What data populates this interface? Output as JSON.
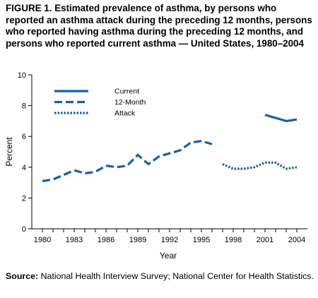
{
  "chart_data": {
    "type": "line",
    "title": "FIGURE 1. Estimated prevalence of asthma, by persons who reported an asthma attack during the preceding 12 months, persons who reported having asthma during the preceding 12 months, and persons who reported current asthma — United States, 1980–2004",
    "xlabel": "Year",
    "ylabel": "Percent",
    "xlim": [
      1979,
      2005
    ],
    "ylim": [
      0,
      10
    ],
    "x_ticks": [
      1980,
      1983,
      1986,
      1989,
      1992,
      1995,
      1998,
      2001,
      2004
    ],
    "y_ticks": [
      0,
      2,
      4,
      6,
      8,
      10
    ],
    "grid": false,
    "legend_position": "top-left",
    "series": [
      {
        "name": "Current",
        "style": "solid",
        "color": "#1560a8",
        "points": [
          [
            2001,
            7.4
          ],
          [
            2002,
            7.2
          ],
          [
            2003,
            7.0
          ],
          [
            2004,
            7.1
          ]
        ]
      },
      {
        "name": "12-Month",
        "style": "dashed",
        "color": "#1560a8",
        "points": [
          [
            1980,
            3.1
          ],
          [
            1981,
            3.2
          ],
          [
            1982,
            3.5
          ],
          [
            1983,
            3.8
          ],
          [
            1984,
            3.6
          ],
          [
            1985,
            3.7
          ],
          [
            1986,
            4.1
          ],
          [
            1987,
            4.0
          ],
          [
            1988,
            4.1
          ],
          [
            1989,
            4.8
          ],
          [
            1990,
            4.2
          ],
          [
            1991,
            4.7
          ],
          [
            1992,
            4.9
          ],
          [
            1993,
            5.1
          ],
          [
            1994,
            5.6
          ],
          [
            1995,
            5.7
          ],
          [
            1996,
            5.5
          ]
        ]
      },
      {
        "name": "Attack",
        "style": "dotted",
        "color": "#1560a8",
        "points": [
          [
            1997,
            4.2
          ],
          [
            1998,
            3.9
          ],
          [
            1999,
            3.9
          ],
          [
            2000,
            4.0
          ],
          [
            2001,
            4.3
          ],
          [
            2002,
            4.3
          ],
          [
            2003,
            3.9
          ],
          [
            2004,
            4.0
          ]
        ]
      }
    ]
  },
  "source": {
    "label": "Source:",
    "text": " National Health Interview Survey; National Center for Health Statistics."
  }
}
